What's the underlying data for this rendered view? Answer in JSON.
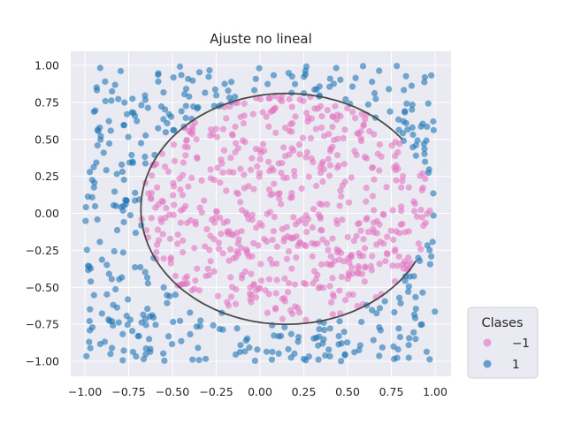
{
  "chart_data": {
    "type": "scatter",
    "title": "Ajuste no lineal",
    "xlabel": "",
    "ylabel": "",
    "xlim": [
      -1.1,
      1.1
    ],
    "ylim": [
      -1.1,
      1.1
    ],
    "xticks": [
      "−1.00",
      "−0.75",
      "−0.50",
      "−0.25",
      "0.00",
      "0.25",
      "0.50",
      "0.75",
      "1.00"
    ],
    "yticks": [
      "1.00",
      "0.75",
      "0.50",
      "0.25",
      "0.00",
      "−0.25",
      "−0.50",
      "−0.75",
      "−1.00"
    ],
    "grid": true,
    "background": "#eaeaf2",
    "legend": {
      "title": "Clases",
      "placement": "outside-bottom-right",
      "entries": [
        {
          "label": "−1",
          "color": "#e377c2"
        },
        {
          "label": "1",
          "color": "#1f77b4"
        }
      ]
    },
    "series": [
      {
        "name": "−1",
        "color": "#e377c2",
        "sample_size": 600,
        "region": "inside boundary curve (ellipse centered ~(0.15, 0.03), radii ~0.83 x 0.78)"
      },
      {
        "name": "1",
        "color": "#1f77b4",
        "sample_size": 400,
        "region": "outside boundary curve, within [-1,1] x [-1,1]"
      },
      {
        "name": "",
        "type": "line",
        "color": "#4a4a4a",
        "description": "decision boundary: ellipse arc from ~(0.97, 0.50) counterclockwise through ~(0.25, 0.81), ~(-0.68, 0.0), ~(0.1, -0.75) to ~(0.97, -0.32)",
        "center": [
          0.15,
          0.03
        ],
        "radii": [
          0.83,
          0.78
        ],
        "arc_gap_start_y": 0.5,
        "arc_gap_end_y": -0.32
      }
    ]
  }
}
